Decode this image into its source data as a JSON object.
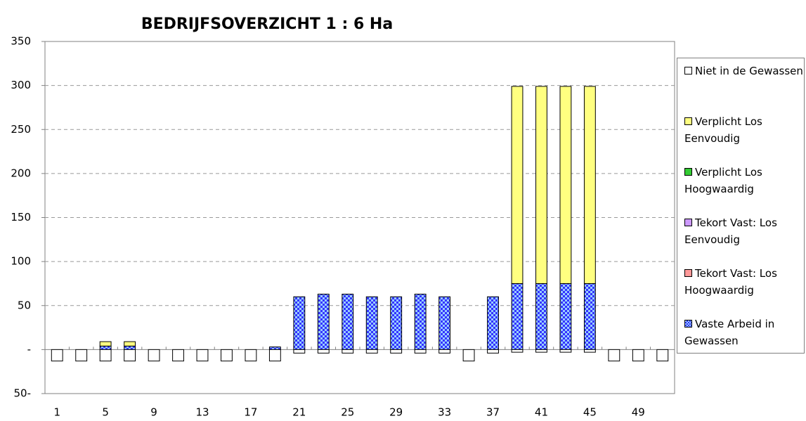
{
  "chart_data": {
    "type": "stacked_bar",
    "title": "BEDRIJFSOVERZICHT 1 : 6 Ha",
    "categories": [
      1,
      null,
      5,
      null,
      9,
      null,
      13,
      null,
      17,
      null,
      21,
      null,
      25,
      null,
      29,
      null,
      33,
      null,
      37,
      null,
      41,
      null,
      45,
      null,
      49,
      null
    ],
    "series": [
      {
        "name": "Niet in de Gewassen",
        "color": "#ffffff",
        "values": [
          -13,
          -13,
          -13,
          -13,
          -13,
          -13,
          -13,
          -13,
          -13,
          -13,
          -4,
          -4,
          -4,
          -4,
          -4,
          -4,
          -4,
          -13,
          -4,
          -3,
          -3,
          -3,
          -3,
          -13,
          -13,
          -13
        ]
      },
      {
        "name": "Verplicht Los Eenvoudig",
        "color": "#ffff80",
        "values": [
          0,
          0,
          5,
          5,
          0,
          0,
          0,
          0,
          0,
          0,
          0,
          0,
          0,
          0,
          0,
          0,
          0,
          0,
          0,
          224,
          224,
          224,
          224,
          0,
          0,
          0
        ]
      },
      {
        "name": "Verplicht Los Hoogwaardig",
        "color": "#33cc33",
        "values": [
          0,
          0,
          0,
          0,
          0,
          0,
          0,
          0,
          0,
          0,
          0,
          0,
          0,
          0,
          0,
          0,
          0,
          0,
          0,
          0,
          0,
          0,
          0,
          0,
          0,
          0
        ]
      },
      {
        "name": "Tekort Vast: Los Eenvoudig",
        "color": "#cc99ff",
        "values": [
          0,
          0,
          0,
          0,
          0,
          0,
          0,
          0,
          0,
          0,
          0,
          0,
          0,
          0,
          0,
          0,
          0,
          0,
          0,
          0,
          0,
          0,
          0,
          0,
          0,
          0
        ]
      },
      {
        "name": "Tekort Vast: Los Hoogwaardig",
        "color": "#ff9999",
        "values": [
          0,
          0,
          0,
          0,
          0,
          0,
          0,
          0,
          0,
          0,
          0,
          0,
          0,
          0,
          0,
          0,
          0,
          0,
          0,
          0,
          0,
          0,
          0,
          0,
          0,
          0
        ]
      },
      {
        "name": "Vaste Arbeid in Gewassen",
        "color": "#3333ff",
        "values": [
          0,
          0,
          4,
          4,
          0,
          0,
          0,
          0,
          0,
          3,
          60,
          63,
          63,
          60,
          60,
          63,
          60,
          0,
          60,
          75,
          75,
          75,
          75,
          0,
          0,
          0
        ]
      }
    ],
    "ylim": [
      -50,
      350
    ],
    "yticks": [
      {
        "value": -50,
        "label": "50-"
      },
      {
        "value": 0,
        "label": "-"
      },
      50,
      100,
      150,
      200,
      250,
      300,
      350
    ],
    "grid": true
  }
}
